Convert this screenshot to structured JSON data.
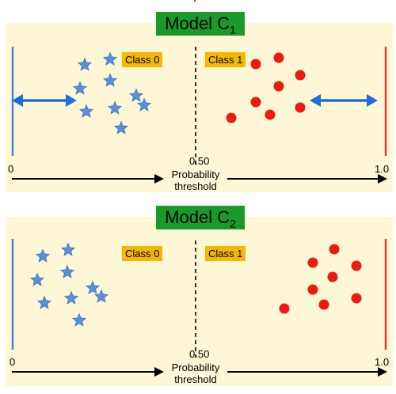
{
  "diagram": {
    "panels": [
      {
        "id": "C1",
        "title": "Model C",
        "title_sub": "1",
        "class0_label": "Class 0",
        "class1_label": "Class 1",
        "threshold_value": "0.50",
        "threshold_label_line1": "Probability",
        "threshold_label_line2": "threshold",
        "axis_min": "0",
        "axis_max": "1.0",
        "has_margin_arrows": true
      },
      {
        "id": "C2",
        "title": "Model C",
        "title_sub": "2",
        "class0_label": "Class 0",
        "class1_label": "Class 1",
        "threshold_value": "0.50",
        "threshold_label_line1": "Probability",
        "threshold_label_line2": "threshold",
        "axis_min": "0",
        "axis_max": "1.0",
        "has_margin_arrows": false
      }
    ],
    "colors": {
      "background": "#fdf7d6",
      "title_bg": "#1a9a2a",
      "badge_bg": "#f5b800",
      "star": "#5b8fd6",
      "dot": "#ee1a10",
      "left_bar": "#4a7fd0",
      "right_bar": "#e83a2a",
      "margin_arrow": "#1e6fd9"
    },
    "icons": {
      "class0_marker": "star-icon",
      "class1_marker": "circle-icon"
    }
  }
}
